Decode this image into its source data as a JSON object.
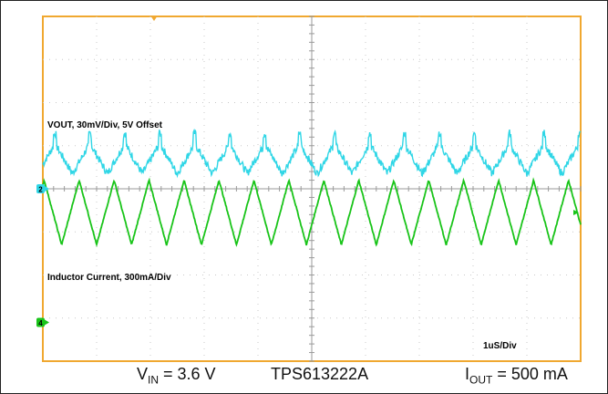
{
  "chart_data": {
    "type": "line",
    "instrument": "oscilloscope",
    "grid": true,
    "divisions": {
      "x": 10,
      "y": 8
    },
    "timebase_label": "1uS/Div",
    "x": {
      "unit": "us",
      "range": [
        0,
        10
      ],
      "per_division": 1
    },
    "series": [
      {
        "name": "VOUT, 30mV/Div, 5V Offset",
        "channel": "2",
        "color": "#2fd6e6",
        "units": "mV",
        "scale_per_div": 30,
        "offset": "5V",
        "waveform": "sawtooth ripple with spikes at switching edges",
        "ripple_peak_to_peak_mV": 21,
        "period_us": 0.65,
        "ground_level_div": 0
      },
      {
        "name": "Inductor Current, 300mA/Div",
        "channel": "4",
        "color": "#19c419",
        "units": "mA",
        "scale_per_div": 300,
        "waveform": "triangle",
        "current_min_mA": 210,
        "current_max_mA": 660,
        "period_us": 0.65,
        "ground_level_div": -2
      }
    ]
  },
  "caption": {
    "vin": {
      "main": "V",
      "sub": "IN",
      "rest": " = 3.6 V"
    },
    "part": "TPS613222A",
    "iout": {
      "main": "I",
      "sub": "OUT",
      "rest": " = 500 mA"
    }
  }
}
